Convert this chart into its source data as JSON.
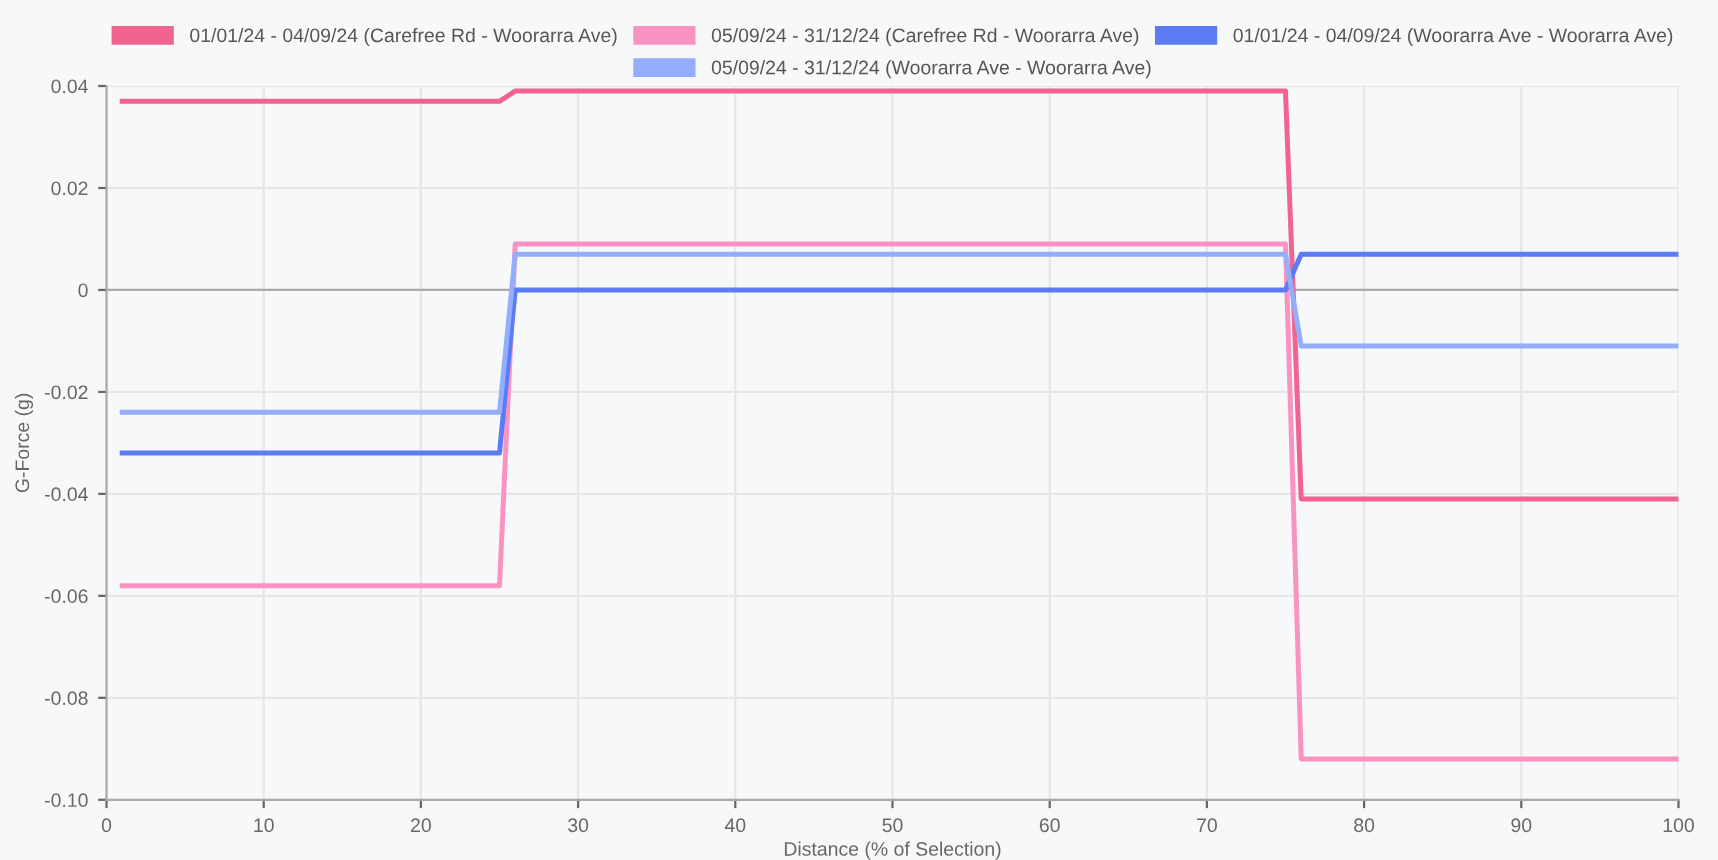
{
  "chart_data": {
    "type": "line",
    "xlabel": "Distance (% of Selection)",
    "ylabel": "G-Force (g)",
    "x": [
      1,
      25,
      26,
      75,
      76,
      100
    ],
    "series": [
      {
        "name": "01/01/24 - 04/09/24 (Carefree Rd - Woorarra Ave)",
        "color": "#f0648f",
        "values": [
          0.037,
          0.037,
          0.039,
          0.039,
          -0.041,
          -0.041
        ]
      },
      {
        "name": "05/09/24 - 31/12/24 (Carefree Rd - Woorarra Ave)",
        "color": "#fb93c2",
        "values": [
          -0.058,
          -0.058,
          0.009,
          0.009,
          -0.092,
          -0.092
        ]
      },
      {
        "name": "01/01/24 - 04/09/24 (Woorarra Ave - Woorarra Ave)",
        "color": "#5b7cf6",
        "values": [
          -0.032,
          -0.032,
          0,
          0,
          0.007,
          0.007
        ]
      },
      {
        "name": "05/09/24 - 31/12/24 (Woorarra Ave - Woorarra Ave)",
        "color": "#92aefc",
        "values": [
          -0.024,
          -0.024,
          0.007,
          0.007,
          -0.011,
          -0.011
        ]
      }
    ],
    "xlim": [
      0,
      100
    ],
    "xticks": [
      0,
      10,
      20,
      30,
      40,
      50,
      60,
      70,
      80,
      90,
      100
    ],
    "ylim": [
      -0.1,
      0.04
    ],
    "yticks": [
      {
        "value": -0.1,
        "label": "-0.10"
      },
      {
        "value": -0.08,
        "label": "-0.08"
      },
      {
        "value": -0.06,
        "label": "-0.06"
      },
      {
        "value": -0.04,
        "label": "-0.04"
      },
      {
        "value": -0.02,
        "label": "-0.02"
      },
      0,
      {
        "value": 0.02,
        "label": "0.02"
      },
      {
        "value": 0.04,
        "label": "0.04"
      }
    ],
    "ref_lines": [
      {
        "axis": "y",
        "value": 0,
        "color": "#aaaaaa"
      }
    ],
    "grid": true,
    "legend": "top",
    "marker": "none",
    "line_style": "solid"
  }
}
